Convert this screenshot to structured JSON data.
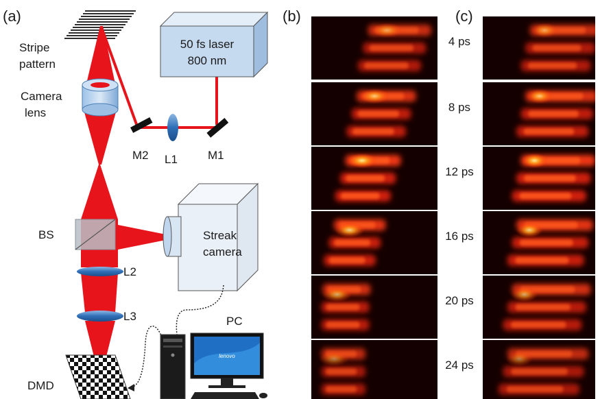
{
  "panels": {
    "a": "(a)",
    "b": "(b)",
    "c": "(c)"
  },
  "setup": {
    "stripe_pattern": [
      "Stripe",
      "pattern"
    ],
    "camera_lens": [
      "Camera",
      "lens"
    ],
    "laser": [
      "50 fs laser",
      "800 nm"
    ],
    "m1": "M1",
    "m2": "M2",
    "l1": "L1",
    "l2": "L2",
    "l3": "L3",
    "bs": "BS",
    "streak_camera": [
      "Streak",
      "camera"
    ],
    "pc": "PC",
    "dmd": "DMD",
    "monitor_brand": "lenovo"
  },
  "frames": [
    {
      "time": "4 ps",
      "level": 0.55
    },
    {
      "time": "8 ps",
      "level": 0.75
    },
    {
      "time": "12 ps",
      "level": 0.95
    },
    {
      "time": "16 ps",
      "level": 0.85
    },
    {
      "time": "20 ps",
      "level": 0.65
    },
    {
      "time": "24 ps",
      "level": 0.45
    }
  ],
  "colors": {
    "beam": "#e8141c",
    "laser_box": "#c5d9ef",
    "lens": "#2f6fb6",
    "frame_bg": "#150000"
  }
}
